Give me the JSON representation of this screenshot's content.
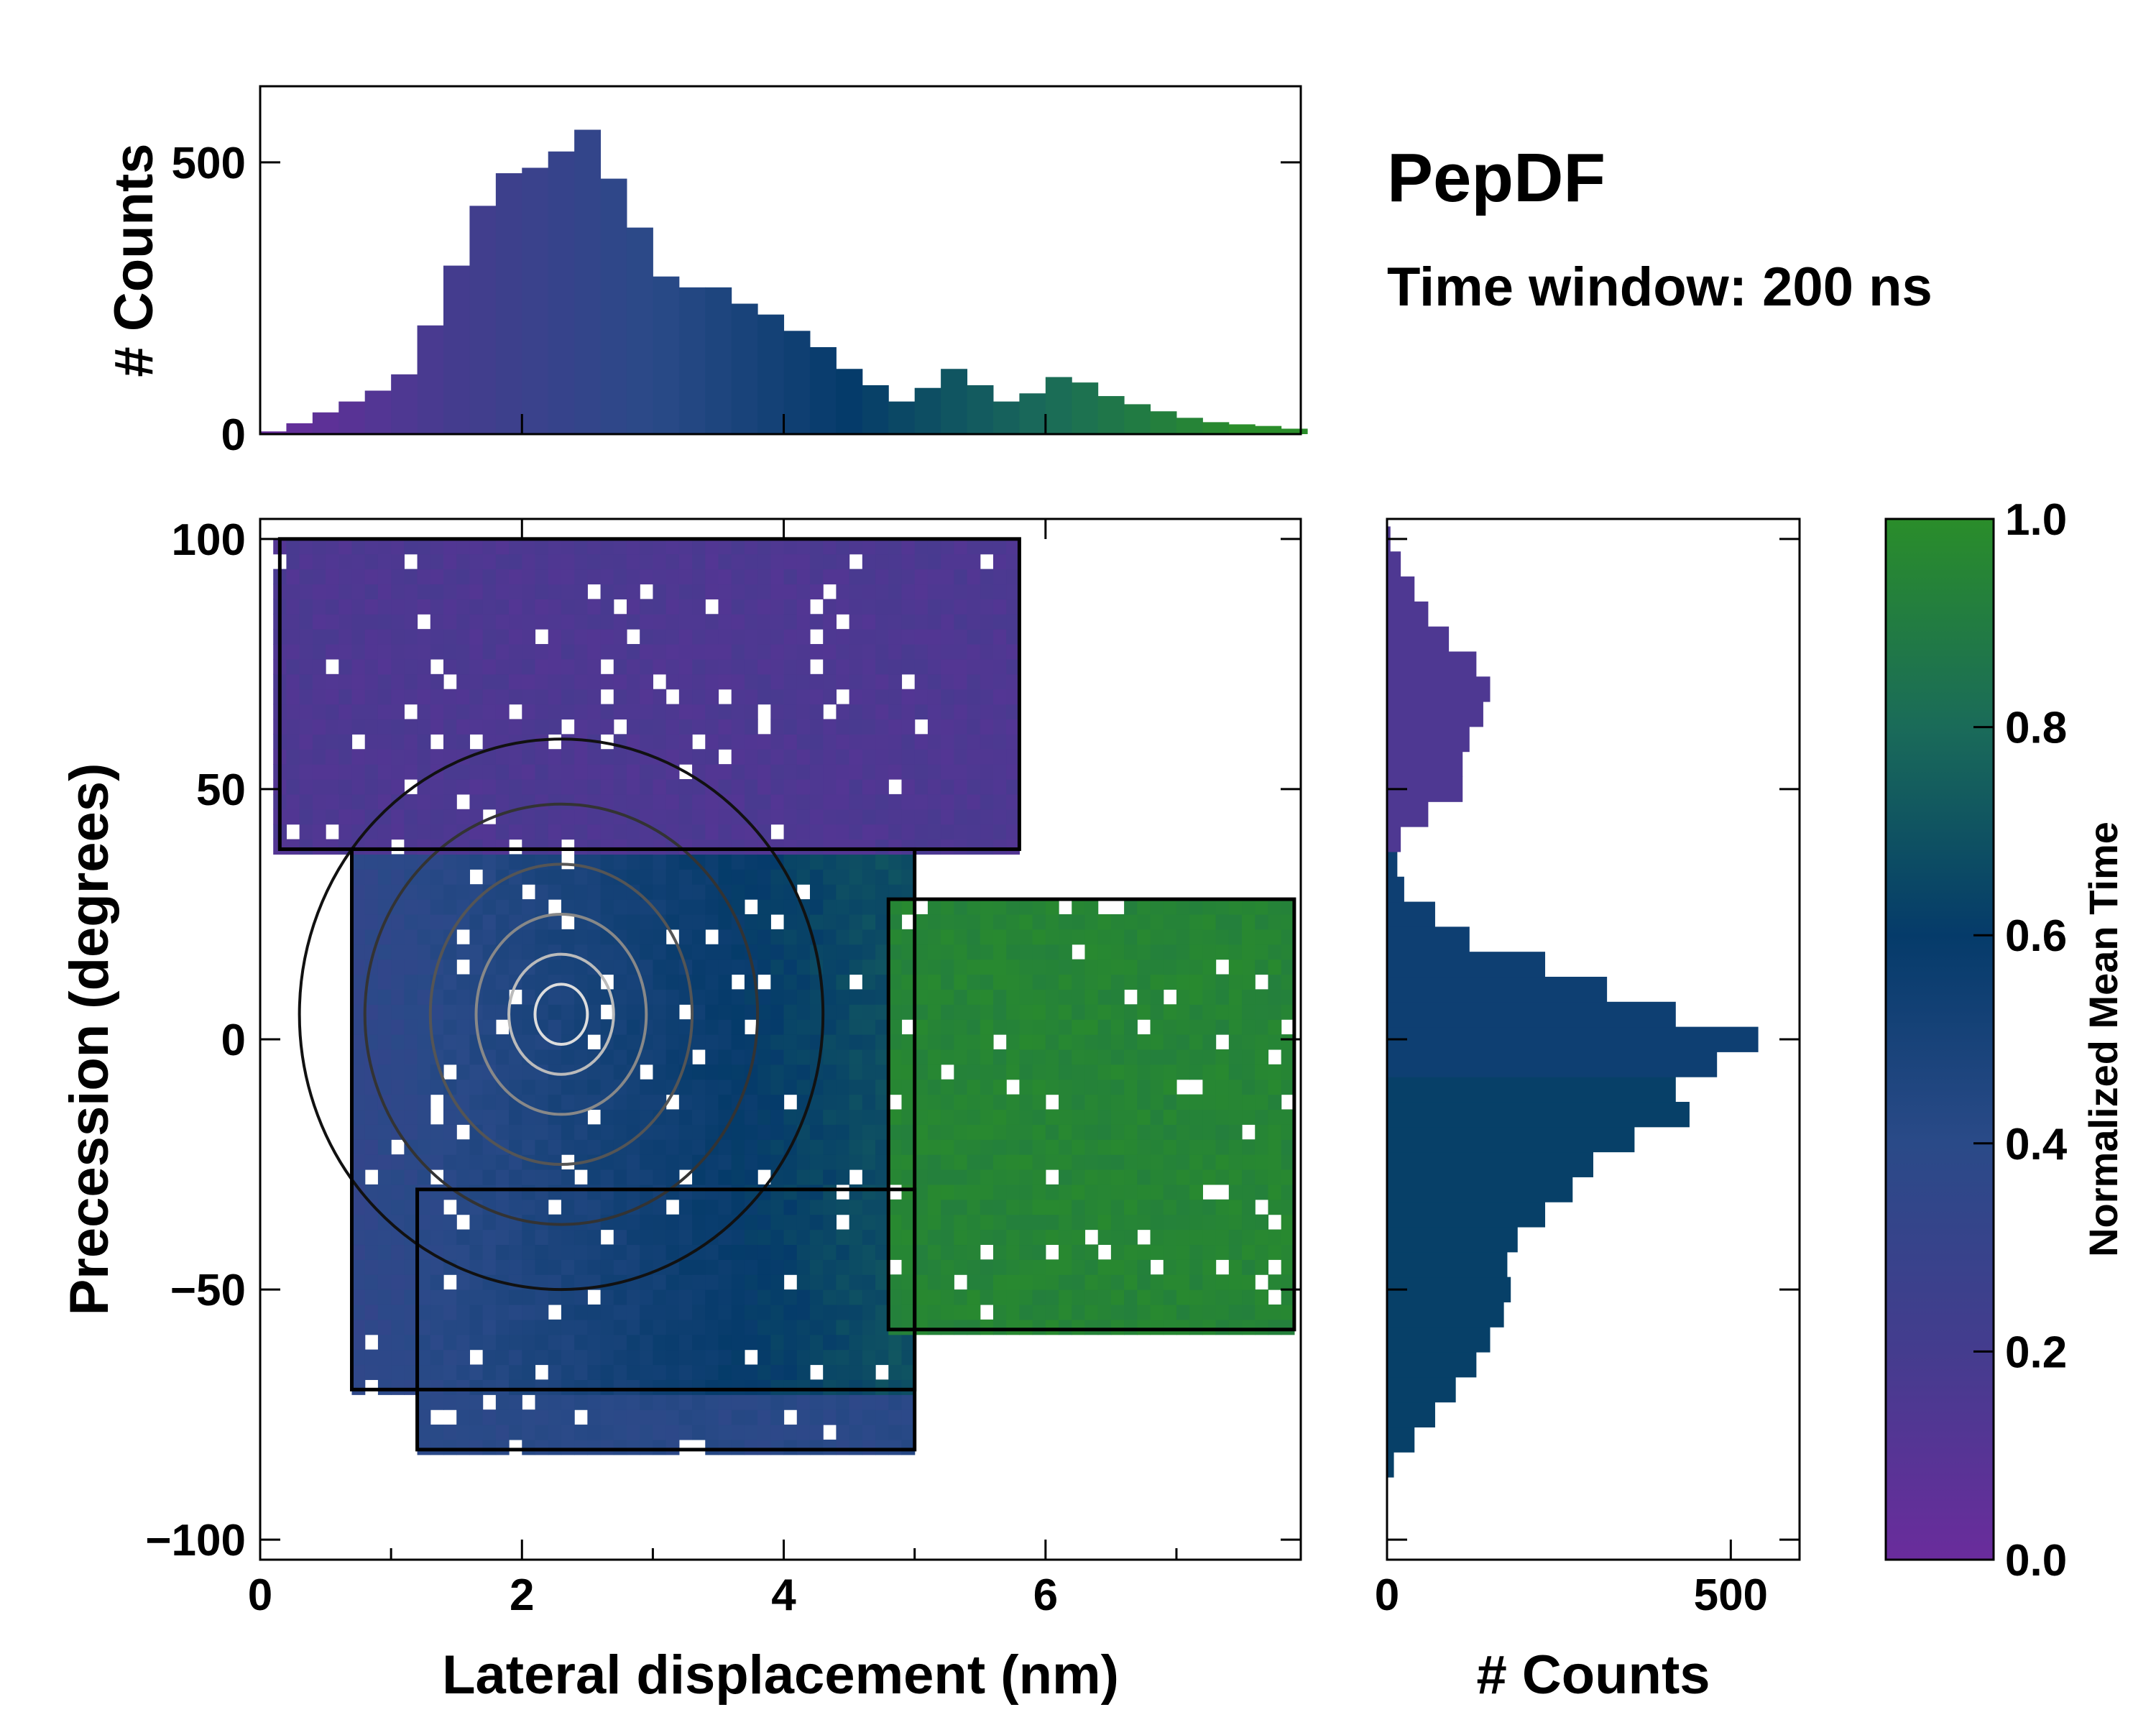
{
  "chart_data": {
    "type": "heatmap",
    "annotation": {
      "title": "PepDF",
      "subtitle": "Time window: 200 ns"
    },
    "main": {
      "xlabel": "Lateral displacement (nm)",
      "ylabel": "Precession (degrees)",
      "xlim": [
        0,
        7.95
      ],
      "ylim": [
        -104,
        104
      ],
      "xticks": [
        0,
        2,
        4,
        6
      ],
      "xtick_labels": [
        "0",
        "2",
        "4",
        "6"
      ],
      "yticks": [
        -100,
        -50,
        0,
        50,
        100
      ],
      "ytick_labels": [
        "−100",
        "−50",
        "0",
        "50",
        "100"
      ],
      "regions": [
        {
          "name": "upper",
          "x": [
            0.15,
            5.8
          ],
          "y": [
            38,
            100
          ],
          "mean_time": 0.15
        },
        {
          "name": "core",
          "x": [
            0.7,
            5.0
          ],
          "y": [
            -70,
            38
          ],
          "mean_time": 0.45
        },
        {
          "name": "right",
          "x": [
            4.8,
            7.9
          ],
          "y": [
            -58,
            28
          ],
          "mean_time": 0.95
        },
        {
          "name": "lower",
          "x": [
            1.2,
            5.0
          ],
          "y": [
            -82,
            -30
          ],
          "mean_time": 0.4
        }
      ],
      "density_peak": {
        "x": 2.3,
        "y": 5
      }
    },
    "top_histogram": {
      "ylabel": "# Counts",
      "ylim": [
        0,
        640
      ],
      "yticks": [
        0,
        500
      ],
      "ytick_labels": [
        "0",
        "500"
      ],
      "x": [
        0.1,
        0.3,
        0.5,
        0.7,
        0.9,
        1.1,
        1.3,
        1.5,
        1.7,
        1.9,
        2.1,
        2.3,
        2.5,
        2.7,
        2.9,
        3.1,
        3.3,
        3.5,
        3.7,
        3.9,
        4.1,
        4.3,
        4.5,
        4.7,
        4.9,
        5.1,
        5.3,
        5.5,
        5.7,
        5.9,
        6.1,
        6.3,
        6.5,
        6.7,
        6.9,
        7.1,
        7.3,
        7.5,
        7.7,
        7.9
      ],
      "counts": [
        5,
        20,
        40,
        60,
        80,
        110,
        200,
        310,
        420,
        480,
        490,
        520,
        560,
        470,
        380,
        290,
        270,
        270,
        240,
        220,
        190,
        160,
        120,
        90,
        60,
        85,
        120,
        90,
        60,
        75,
        105,
        95,
        70,
        55,
        42,
        30,
        22,
        18,
        15,
        10
      ]
    },
    "right_histogram": {
      "xlabel": "# Counts",
      "xlim": [
        0,
        600
      ],
      "xticks": [
        0,
        500
      ],
      "xtick_labels": [
        "0",
        "500"
      ],
      "y": [
        -85,
        -80,
        -75,
        -70,
        -65,
        -60,
        -55,
        -50,
        -45,
        -40,
        -35,
        -30,
        -25,
        -20,
        -15,
        -10,
        -5,
        0,
        5,
        10,
        15,
        20,
        25,
        30,
        35,
        40,
        45,
        50,
        55,
        60,
        65,
        70,
        75,
        80,
        85,
        90,
        95,
        100
      ],
      "counts": [
        10,
        40,
        70,
        100,
        130,
        150,
        170,
        180,
        175,
        190,
        230,
        270,
        300,
        360,
        440,
        420,
        480,
        540,
        420,
        320,
        230,
        120,
        70,
        25,
        15,
        20,
        60,
        110,
        110,
        120,
        140,
        150,
        130,
        90,
        60,
        40,
        20,
        5
      ]
    },
    "colorbar": {
      "label": "Normalized Mean Time",
      "range": [
        0,
        1
      ],
      "ticks": [
        0.0,
        0.2,
        0.4,
        0.6,
        0.8,
        1.0
      ],
      "tick_labels": [
        "0.0",
        "0.2",
        "0.4",
        "0.6",
        "0.8",
        "1.0"
      ],
      "colormap": [
        "#6a2c9c",
        "#443c8e",
        "#2a4a88",
        "#053b6a",
        "#1a6b59",
        "#2a8d2a"
      ]
    }
  }
}
